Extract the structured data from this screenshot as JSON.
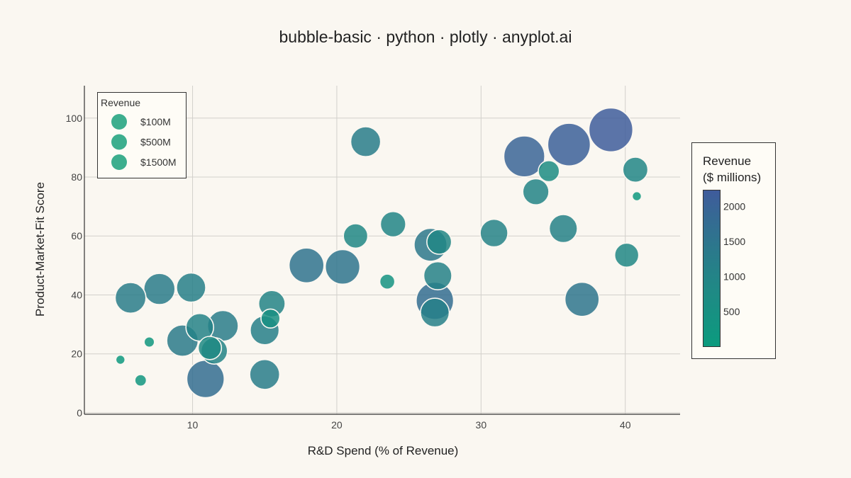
{
  "chart_data": {
    "type": "scatter",
    "title": "bubble-basic · python · plotly · anyplot.ai",
    "xlabel": "R&D Spend (% of Revenue)",
    "ylabel": "Product-Market-Fit Score",
    "xlim": [
      2.5,
      43.8
    ],
    "ylim": [
      -0.5,
      111
    ],
    "x_ticks": [
      10,
      20,
      30,
      40
    ],
    "y_ticks": [
      0,
      20,
      40,
      60,
      80,
      100
    ],
    "grid": true,
    "size_encoding": "Revenue",
    "color_encoding": "Revenue",
    "points": [
      {
        "x": 5.0,
        "y": 18.0,
        "size": 60
      },
      {
        "x": 5.7,
        "y": 39.0,
        "size": 1050
      },
      {
        "x": 6.4,
        "y": 11.0,
        "size": 150
      },
      {
        "x": 7.0,
        "y": 24.0,
        "size": 120
      },
      {
        "x": 7.7,
        "y": 42.0,
        "size": 1080
      },
      {
        "x": 9.3,
        "y": 24.5,
        "size": 1100
      },
      {
        "x": 9.9,
        "y": 42.5,
        "size": 950
      },
      {
        "x": 10.5,
        "y": 29.0,
        "size": 850
      },
      {
        "x": 10.9,
        "y": 11.5,
        "size": 1560
      },
      {
        "x": 11.2,
        "y": 22.0,
        "size": 600
      },
      {
        "x": 11.5,
        "y": 21.0,
        "size": 780
      },
      {
        "x": 12.1,
        "y": 29.5,
        "size": 1050
      },
      {
        "x": 15.0,
        "y": 13.0,
        "size": 1000
      },
      {
        "x": 15.0,
        "y": 28.0,
        "size": 930
      },
      {
        "x": 15.4,
        "y": 32.0,
        "size": 400
      },
      {
        "x": 15.5,
        "y": 37.0,
        "size": 780
      },
      {
        "x": 17.9,
        "y": 50.0,
        "size": 1350
      },
      {
        "x": 20.4,
        "y": 49.5,
        "size": 1330
      },
      {
        "x": 21.3,
        "y": 60.0,
        "size": 660
      },
      {
        "x": 22.0,
        "y": 92.0,
        "size": 1000
      },
      {
        "x": 23.5,
        "y": 44.5,
        "size": 250
      },
      {
        "x": 23.9,
        "y": 64.0,
        "size": 720
      },
      {
        "x": 26.5,
        "y": 57.0,
        "size": 1200
      },
      {
        "x": 26.8,
        "y": 38.0,
        "size": 1560
      },
      {
        "x": 26.8,
        "y": 34.0,
        "size": 920
      },
      {
        "x": 27.0,
        "y": 46.5,
        "size": 880
      },
      {
        "x": 27.1,
        "y": 58.0,
        "size": 680
      },
      {
        "x": 30.9,
        "y": 61.0,
        "size": 850
      },
      {
        "x": 33.0,
        "y": 87.0,
        "size": 1870
      },
      {
        "x": 33.8,
        "y": 75.0,
        "size": 760
      },
      {
        "x": 34.7,
        "y": 82.0,
        "size": 500
      },
      {
        "x": 35.7,
        "y": 62.5,
        "size": 880
      },
      {
        "x": 36.1,
        "y": 91.0,
        "size": 2030
      },
      {
        "x": 37.0,
        "y": 38.5,
        "size": 1300
      },
      {
        "x": 39.0,
        "y": 96.0,
        "size": 2150
      },
      {
        "x": 40.1,
        "y": 53.5,
        "size": 650
      },
      {
        "x": 40.7,
        "y": 82.5,
        "size": 700
      },
      {
        "x": 40.8,
        "y": 73.5,
        "size": 80
      }
    ],
    "legend": {
      "title": "Revenue",
      "entries": [
        "$100M",
        "$500M",
        "$1500M"
      ],
      "placement": "top-left",
      "color": "#3DAE8E"
    },
    "colorbar": {
      "title_lines": [
        "Revenue",
        "($ millions)"
      ],
      "ticks": [
        2000,
        1500,
        1000,
        500
      ],
      "range": [
        0,
        2230
      ],
      "placement": "right",
      "colors": [
        "#0B9B7E",
        "#1E8A84",
        "#2A7A8A",
        "#356A93",
        "#3F5B9C"
      ]
    }
  }
}
